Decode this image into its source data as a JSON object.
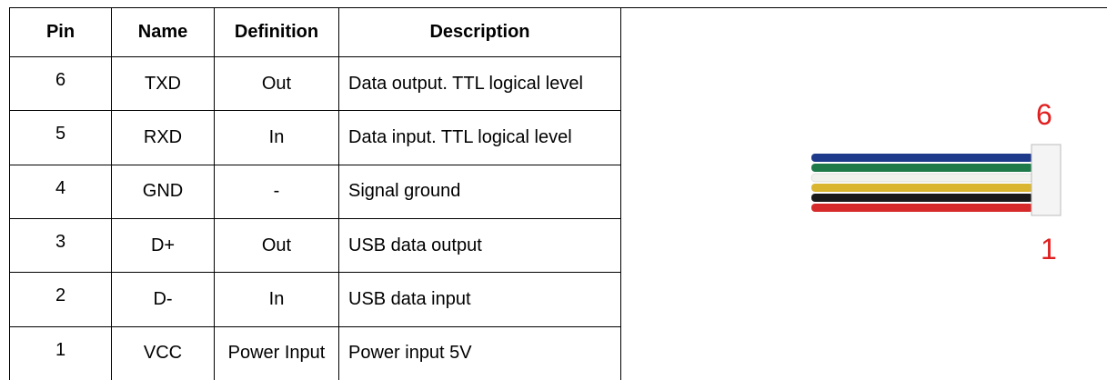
{
  "table": {
    "header": [
      "Pin",
      "Name",
      "Definition",
      "Description"
    ],
    "rows": [
      [
        "6",
        "TXD",
        "Out",
        "Data output. TTL logical level"
      ],
      [
        "5",
        "RXD",
        "In",
        "Data input. TTL logical level"
      ],
      [
        "4",
        "GND",
        "-",
        "Signal ground"
      ],
      [
        "3",
        "D+",
        "Out",
        "USB data output"
      ],
      [
        "2",
        "D-",
        "In",
        "USB data input"
      ],
      [
        "1",
        "VCC",
        "Power Input",
        "Power input 5V"
      ]
    ]
  },
  "connector": {
    "top_label": "6",
    "bottom_label": "1"
  }
}
